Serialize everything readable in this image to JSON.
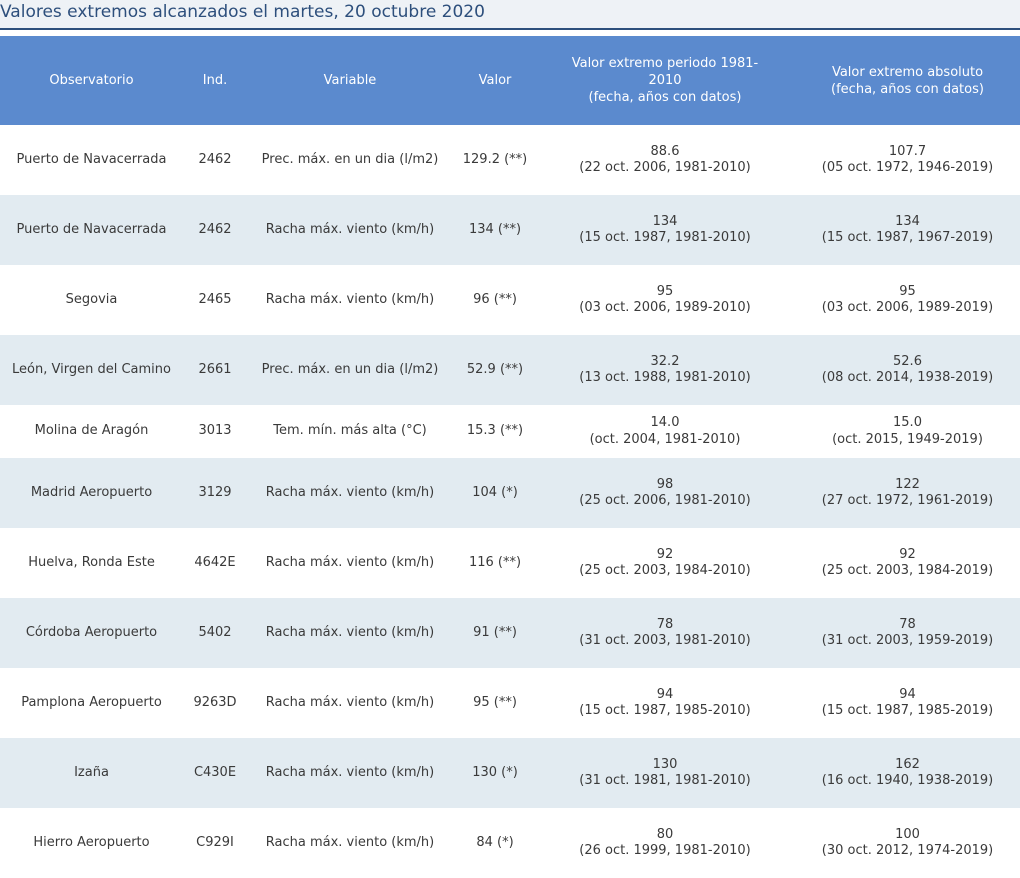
{
  "caption": "Valores extremos alcanzados el martes, 20 octubre 2020",
  "headers": {
    "observatorio": "Observatorio",
    "ind": "Ind.",
    "variable": "Variable",
    "valor": "Valor",
    "periodo_line1": "Valor extremo periodo 1981-",
    "periodo_line2": "2010",
    "periodo_line3": "(fecha, años con datos)",
    "absoluto_line1": "Valor extremo absoluto",
    "absoluto_line2": "(fecha, años con datos)"
  },
  "rows": [
    {
      "observatorio": "Puerto de Navacerrada",
      "ind": "2462",
      "variable": "Prec. máx. en un dia (l/m2)",
      "valor": "129.2 (**)",
      "periodo_valor": "88.6",
      "periodo_detalle": "(22 oct. 2006, 1981-2010)",
      "absoluto_valor": "107.7",
      "absoluto_detalle": "(05 oct. 1972, 1946-2019)"
    },
    {
      "observatorio": "Puerto de Navacerrada",
      "ind": "2462",
      "variable": "Racha máx. viento (km/h)",
      "valor": "134 (**)",
      "periodo_valor": "134",
      "periodo_detalle": "(15 oct. 1987, 1981-2010)",
      "absoluto_valor": "134",
      "absoluto_detalle": "(15 oct. 1987, 1967-2019)"
    },
    {
      "observatorio": "Segovia",
      "ind": "2465",
      "variable": "Racha máx. viento (km/h)",
      "valor": "96 (**)",
      "periodo_valor": "95",
      "periodo_detalle": "(03 oct. 2006, 1989-2010)",
      "absoluto_valor": "95",
      "absoluto_detalle": "(03 oct. 2006, 1989-2019)"
    },
    {
      "observatorio": "León, Virgen del Camino",
      "ind": "2661",
      "variable": "Prec. máx. en un dia (l/m2)",
      "valor": "52.9 (**)",
      "periodo_valor": "32.2",
      "periodo_detalle": "(13 oct. 1988, 1981-2010)",
      "absoluto_valor": "52.6",
      "absoluto_detalle": "(08 oct. 2014, 1938-2019)"
    },
    {
      "observatorio": "Molina de Aragón",
      "ind": "3013",
      "variable": "Tem. mín. más alta (°C)",
      "valor": "15.3 (**)",
      "periodo_valor": "14.0",
      "periodo_detalle": "(oct. 2004, 1981-2010)",
      "absoluto_valor": "15.0",
      "absoluto_detalle": "(oct. 2015, 1949-2019)"
    },
    {
      "observatorio": "Madrid Aeropuerto",
      "ind": "3129",
      "variable": "Racha máx. viento (km/h)",
      "valor": "104 (*)",
      "periodo_valor": "98",
      "periodo_detalle": "(25 oct. 2006, 1981-2010)",
      "absoluto_valor": "122",
      "absoluto_detalle": "(27 oct. 1972, 1961-2019)"
    },
    {
      "observatorio": "Huelva, Ronda Este",
      "ind": "4642E",
      "variable": "Racha máx. viento (km/h)",
      "valor": "116 (**)",
      "periodo_valor": "92",
      "periodo_detalle": "(25 oct. 2003, 1984-2010)",
      "absoluto_valor": "92",
      "absoluto_detalle": "(25 oct. 2003, 1984-2019)"
    },
    {
      "observatorio": "Córdoba Aeropuerto",
      "ind": "5402",
      "variable": "Racha máx. viento (km/h)",
      "valor": "91 (**)",
      "periodo_valor": "78",
      "periodo_detalle": "(31 oct. 2003, 1981-2010)",
      "absoluto_valor": "78",
      "absoluto_detalle": "(31 oct. 2003, 1959-2019)"
    },
    {
      "observatorio": "Pamplona Aeropuerto",
      "ind": "9263D",
      "variable": "Racha máx. viento (km/h)",
      "valor": "95 (**)",
      "periodo_valor": "94",
      "periodo_detalle": "(15 oct. 1987, 1985-2010)",
      "absoluto_valor": "94",
      "absoluto_detalle": "(15 oct. 1987, 1985-2019)"
    },
    {
      "observatorio": "Izaña",
      "ind": "C430E",
      "variable": "Racha máx. viento (km/h)",
      "valor": "130 (*)",
      "periodo_valor": "130",
      "periodo_detalle": "(31 oct. 1981, 1981-2010)",
      "absoluto_valor": "162",
      "absoluto_detalle": "(16 oct. 1940, 1938-2019)"
    },
    {
      "observatorio": "Hierro Aeropuerto",
      "ind": "C929I",
      "variable": "Racha máx. viento (km/h)",
      "valor": "84 (*)",
      "periodo_valor": "80",
      "periodo_detalle": "(26 oct. 1999, 1981-2010)",
      "absoluto_valor": "100",
      "absoluto_detalle": "(30 oct. 2012, 1974-2019)"
    }
  ]
}
